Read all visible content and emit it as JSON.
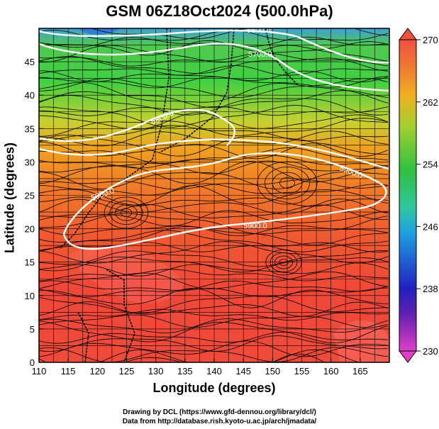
{
  "title": "GSM 06Z18Oct2024 (500.0hPa)",
  "x_axis": {
    "label": "Longitude (degrees)",
    "ticks": [
      "110",
      "115",
      "120",
      "125",
      "130",
      "135",
      "140",
      "145",
      "150",
      "155",
      "160",
      "165"
    ]
  },
  "y_axis": {
    "label": "Latitude  (degrees)",
    "ticks": [
      "0",
      "5",
      "10",
      "15",
      "20",
      "25",
      "30",
      "35",
      "40",
      "45"
    ]
  },
  "colorbar": {
    "ticks": [
      "230",
      "238",
      "246",
      "254",
      "262",
      "270"
    ],
    "range": [
      230,
      270
    ],
    "colors": [
      "#e040c8",
      "#2020c0",
      "#1ea0e0",
      "#30c040",
      "#f09020",
      "#f05040"
    ]
  },
  "contour_labels": [
    "5600.0",
    "5700.0",
    "5800.0",
    "5900.0",
    "5900.0",
    "5900.0"
  ],
  "credits": {
    "line1": "Drawing by DCL (https://www.gfd-dennou.org/library/dcl/)",
    "line2": "Data from http://database.rish.kyoto-u.ac.jp/arch/jmadata/"
  }
}
